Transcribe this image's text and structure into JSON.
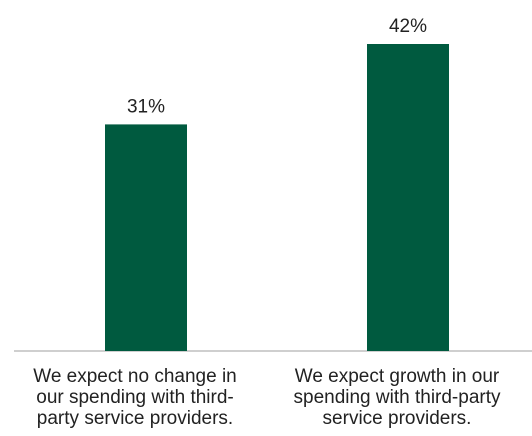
{
  "chart_data": {
    "type": "bar",
    "categories": [
      "We expect no change in our spending with third-party service providers.",
      "We expect growth in our spending with third-party service providers."
    ],
    "category_lines": [
      [
        "We expect no change in",
        "our spending with third-",
        "party service providers."
      ],
      [
        "We expect growth in our",
        "spending with third-party",
        "service providers."
      ]
    ],
    "values": [
      31,
      42
    ],
    "data_labels": [
      "31%",
      "42%"
    ],
    "ylim": [
      0,
      45
    ],
    "grid": false,
    "legend": "none",
    "bar_color": "#005a3f",
    "axis_color": "#bfbfbf"
  }
}
